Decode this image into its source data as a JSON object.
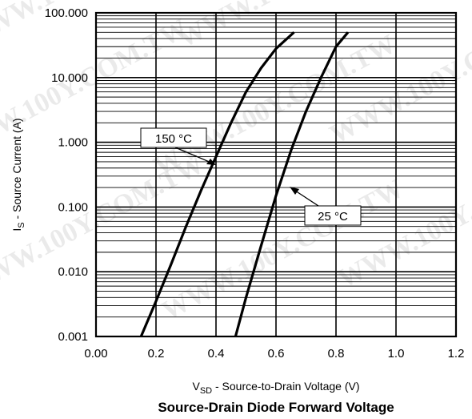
{
  "chart_data": {
    "type": "line",
    "title": "Source-Drain Diode Forward Voltage",
    "xlabel": {
      "prefix": "V",
      "sub": "SD",
      "suffix": "  -  Source-to-Drain Voltage (V)"
    },
    "ylabel": {
      "prefix": "I",
      "sub": "S",
      "suffix": " - Source Current (A)"
    },
    "xlim": [
      0,
      1.2
    ],
    "ylim": [
      0.001,
      100
    ],
    "yscale": "log",
    "grid": true,
    "x_ticks": [
      "0.00",
      "0.2",
      "0.4",
      "0.6",
      "0.8",
      "1.0",
      "1.2"
    ],
    "y_ticks": [
      "0.001",
      "0.010",
      "0.100",
      "1.000",
      "10.000",
      "100.000"
    ],
    "series": [
      {
        "name": "150 °C",
        "points": [
          [
            0.15,
            0.001
          ],
          [
            0.2,
            0.0035
          ],
          [
            0.25,
            0.013
          ],
          [
            0.3,
            0.05
          ],
          [
            0.35,
            0.18
          ],
          [
            0.4,
            0.6
          ],
          [
            0.45,
            2.0
          ],
          [
            0.5,
            6.0
          ],
          [
            0.55,
            14
          ],
          [
            0.6,
            28
          ],
          [
            0.66,
            50
          ]
        ]
      },
      {
        "name": "25 °C",
        "points": [
          [
            0.465,
            0.001
          ],
          [
            0.5,
            0.004
          ],
          [
            0.55,
            0.025
          ],
          [
            0.6,
            0.15
          ],
          [
            0.65,
            0.75
          ],
          [
            0.7,
            3.0
          ],
          [
            0.75,
            10
          ],
          [
            0.8,
            30
          ],
          [
            0.84,
            50
          ]
        ]
      }
    ],
    "annotations": [
      {
        "text": "150 °C",
        "series": "150 °C"
      },
      {
        "text": "25 °C",
        "series": "25 °C"
      }
    ]
  },
  "watermarks": [
    "WWW.100Y.COM.TW",
    "WWW.100Y.COM.TW",
    "WWW.100Y.COM.TW",
    "WWW.100Y.COM.TW",
    "WWW.100Y.COM.TW",
    "WWW.100Y.COM.TW",
    "WWW.100Y.COM.TW",
    "WWW.100Y.COM.TW"
  ],
  "colors": {
    "curve": "#000000",
    "grid": "#000000",
    "background": "#ffffff"
  }
}
